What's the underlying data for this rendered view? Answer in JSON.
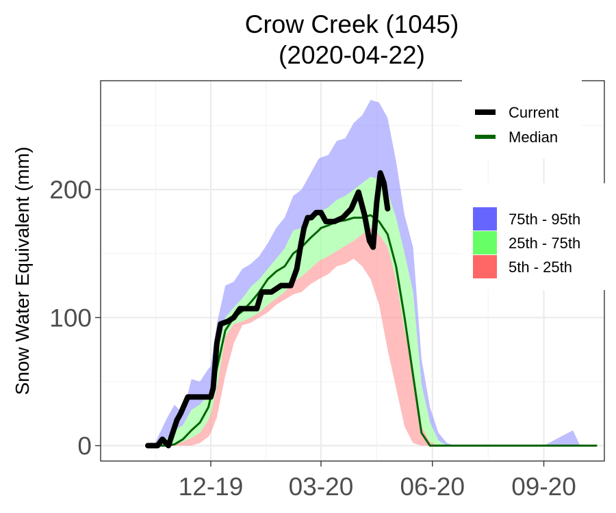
{
  "chart_data": {
    "type": "area",
    "title": "Crow Creek (1045)",
    "subtitle": "(2020-04-22)",
    "xlabel": "",
    "ylabel": "Snow Water Equivalent (mm)",
    "x_tick_labels": [
      "12-19",
      "03-20",
      "06-20",
      "09-20"
    ],
    "x_tick_dates": [
      "2019-12-01",
      "2020-03-01",
      "2020-06-01",
      "2020-09-01"
    ],
    "xlim": [
      "2019-09-01",
      "2020-10-21"
    ],
    "y_ticks": [
      0,
      100,
      200
    ],
    "ylim": [
      -12,
      285
    ],
    "grid": true,
    "legend_position": "right",
    "colors": {
      "band_75_95": "#9999ff",
      "band_25_75": "#99ff99",
      "band_5_25": "#ff9999",
      "median": "#006400",
      "current": "#000000",
      "key_75_95": "#6666ff",
      "key_25_75": "#66ff66",
      "key_5_25": "#ff6666"
    },
    "legend": {
      "lines": [
        "Current",
        "Median"
      ],
      "bands": [
        "75th - 95th",
        "25th - 75th",
        "5th - 25th"
      ]
    },
    "x": [
      "2019-10-15",
      "2019-10-25",
      "2019-11-01",
      "2019-11-08",
      "2019-11-15",
      "2019-11-22",
      "2019-11-29",
      "2019-12-01",
      "2019-12-06",
      "2019-12-13",
      "2019-12-20",
      "2019-12-27",
      "2020-01-03",
      "2020-01-10",
      "2020-01-17",
      "2020-01-24",
      "2020-01-31",
      "2020-02-07",
      "2020-02-14",
      "2020-02-21",
      "2020-02-28",
      "2020-03-01",
      "2020-03-07",
      "2020-03-14",
      "2020-03-21",
      "2020-03-28",
      "2020-04-04",
      "2020-04-11",
      "2020-04-18",
      "2020-04-25",
      "2020-05-02",
      "2020-05-09",
      "2020-05-16",
      "2020-05-23",
      "2020-05-30",
      "2020-06-06",
      "2020-06-13",
      "2020-06-20",
      "2020-07-01",
      "2020-08-01",
      "2020-09-01",
      "2020-09-25",
      "2020-10-01",
      "2020-10-15"
    ],
    "series": [
      {
        "name": "95th",
        "values": [
          0,
          20,
          32,
          25,
          52,
          50,
          60,
          62,
          95,
          125,
          128,
          138,
          142,
          148,
          158,
          170,
          178,
          195,
          200,
          212,
          224,
          225,
          227,
          238,
          240,
          252,
          258,
          270,
          268,
          256,
          222,
          180,
          155,
          68,
          30,
          10,
          2,
          0,
          0,
          0,
          0,
          12,
          0,
          0
        ]
      },
      {
        "name": "75th",
        "values": [
          0,
          5,
          12,
          16,
          28,
          32,
          40,
          45,
          70,
          100,
          108,
          115,
          124,
          130,
          138,
          146,
          154,
          168,
          170,
          176,
          182,
          183,
          186,
          192,
          195,
          200,
          205,
          210,
          208,
          198,
          178,
          150,
          120,
          48,
          18,
          4,
          0,
          0,
          0,
          0,
          0,
          0,
          0,
          0
        ]
      },
      {
        "name": "25th",
        "values": [
          0,
          0,
          1,
          3,
          6,
          10,
          20,
          25,
          45,
          85,
          95,
          97,
          100,
          104,
          110,
          115,
          120,
          128,
          132,
          138,
          144,
          145,
          148,
          152,
          156,
          160,
          165,
          170,
          165,
          155,
          130,
          90,
          60,
          15,
          3,
          0,
          0,
          0,
          0,
          0,
          0,
          0,
          0,
          0
        ]
      },
      {
        "name": "5th",
        "values": [
          0,
          0,
          0,
          0,
          0,
          2,
          7,
          10,
          22,
          55,
          80,
          94,
          96,
          100,
          104,
          110,
          114,
          118,
          120,
          126,
          130,
          131,
          134,
          140,
          142,
          146,
          140,
          130,
          110,
          75,
          45,
          15,
          2,
          0,
          0,
          0,
          0,
          0,
          0,
          0,
          0,
          0,
          0,
          0
        ]
      },
      {
        "name": "Median",
        "values": [
          0,
          0,
          1,
          5,
          12,
          18,
          30,
          38,
          60,
          90,
          100,
          105,
          112,
          120,
          130,
          136,
          140,
          150,
          155,
          162,
          168,
          170,
          172,
          175,
          176,
          178,
          178,
          180,
          175,
          165,
          140,
          100,
          55,
          10,
          0,
          0,
          0,
          0,
          0,
          0,
          0,
          0,
          0,
          0
        ]
      }
    ],
    "current": {
      "name": "Current",
      "x": [
        "2019-10-10",
        "2019-10-18",
        "2019-10-22",
        "2019-10-27",
        "2019-11-03",
        "2019-11-06",
        "2019-11-12",
        "2019-11-20",
        "2019-12-01",
        "2019-12-03",
        "2019-12-06",
        "2019-12-09",
        "2019-12-15",
        "2019-12-20",
        "2019-12-25",
        "2020-01-01",
        "2020-01-08",
        "2020-01-12",
        "2020-01-20",
        "2020-01-28",
        "2020-02-05",
        "2020-02-10",
        "2020-02-13",
        "2020-02-16",
        "2020-02-19",
        "2020-02-22",
        "2020-02-26",
        "2020-03-01",
        "2020-03-05",
        "2020-03-12",
        "2020-03-19",
        "2020-03-26",
        "2020-04-01",
        "2020-04-06",
        "2020-04-10",
        "2020-04-13",
        "2020-04-16",
        "2020-04-19",
        "2020-04-22",
        "2020-04-25"
      ],
      "values": [
        0,
        0,
        5,
        0,
        20,
        25,
        38,
        38,
        38,
        45,
        80,
        95,
        97,
        100,
        107,
        107,
        107,
        120,
        120,
        125,
        125,
        138,
        155,
        170,
        178,
        178,
        182,
        182,
        175,
        175,
        178,
        185,
        198,
        180,
        160,
        155,
        190,
        213,
        205,
        185
      ]
    }
  }
}
